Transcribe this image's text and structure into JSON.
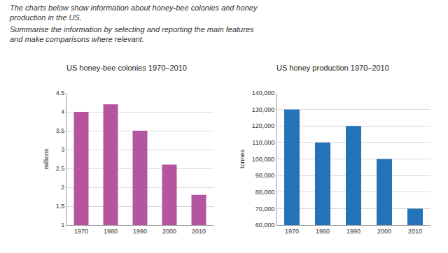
{
  "instructions": [
    "The charts below show information about honey-bee colonies and honey production in the US.",
    "Summarise the information by selecting and reporting the main features and make comparisons where relevant."
  ],
  "chart_data": [
    {
      "type": "bar",
      "title": "US honey-bee colonies 1970–2010",
      "ylabel": "millions",
      "categories": [
        "1970",
        "1980",
        "1990",
        "2000",
        "2010"
      ],
      "values": [
        4.0,
        4.2,
        3.5,
        2.6,
        1.8
      ],
      "color": "#b5559f",
      "ylim": [
        1,
        4.5
      ],
      "yticks": [
        1,
        1.5,
        2,
        2.5,
        3,
        3.5,
        4,
        4.5
      ],
      "grid": true
    },
    {
      "type": "bar",
      "title": "US honey production 1970–2010",
      "ylabel": "tonnes",
      "categories": [
        "1970",
        "1980",
        "1990",
        "2000",
        "2010"
      ],
      "values": [
        130000,
        110000,
        120000,
        100000,
        70000
      ],
      "color": "#2472b8",
      "ylim": [
        60000,
        140000
      ],
      "yticks": [
        {
          "value": 60000,
          "label": "60,000"
        },
        {
          "value": 70000,
          "label": "70,000"
        },
        {
          "value": 80000,
          "label": "80,000"
        },
        {
          "value": 90000,
          "label": "90,000"
        },
        {
          "value": 100000,
          "label": "100,000"
        },
        {
          "value": 110000,
          "label": "110,000"
        },
        {
          "value": 120000,
          "label": "120,000"
        },
        {
          "value": 130000,
          "label": "130,000"
        },
        {
          "value": 140000,
          "label": "140,000"
        }
      ],
      "grid": true
    }
  ]
}
